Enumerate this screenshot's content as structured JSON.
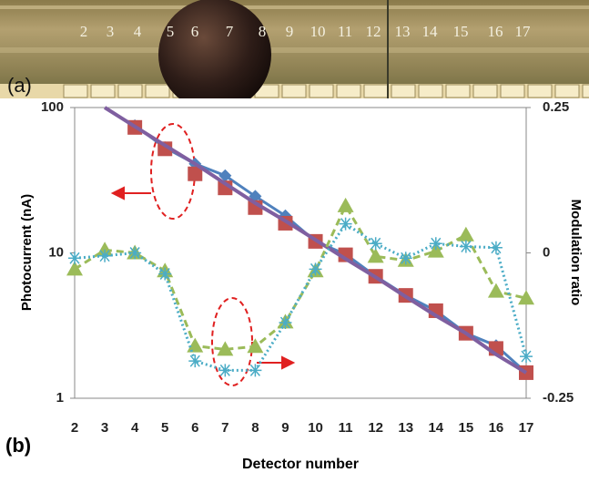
{
  "photo": {
    "panel_label": "(a)",
    "labels": [
      "2",
      "3",
      "4",
      "5",
      "6",
      "7",
      "8",
      "9",
      "10",
      "11",
      "12",
      "13",
      "14",
      "15",
      "16",
      "17"
    ]
  },
  "chart_data": {
    "type": "line",
    "panel_label": "(b)",
    "x_label": "Detector number",
    "y_label": "Photocurrent (nA)",
    "y2_label": "Modulation ratio",
    "categories": [
      2,
      3,
      4,
      5,
      6,
      7,
      8,
      9,
      10,
      11,
      12,
      13,
      14,
      15,
      16,
      17
    ],
    "ylim": [
      1,
      100
    ],
    "yticks": [
      1,
      10,
      100
    ],
    "ylog": true,
    "y2lim": [
      -0.25,
      0.25
    ],
    "y2ticks": [
      -0.25,
      0,
      0.25
    ],
    "series": [
      {
        "color": "#4f81bd",
        "style": "solid",
        "marker": "diamond",
        "axis": "y",
        "values": [
          null,
          null,
          75,
          53,
          41,
          34,
          24.5,
          18,
          12,
          9.8,
          6.9,
          5.1,
          4,
          2.8,
          2.3,
          1.5
        ]
      },
      {
        "color": "#c0504d",
        "style": "none",
        "marker": "square",
        "axis": "y",
        "values": [
          null,
          null,
          73,
          52,
          35,
          28,
          20.5,
          16,
          12,
          9.7,
          6.9,
          5.1,
          4,
          2.8,
          2.2,
          1.5
        ]
      },
      {
        "color": "#7f5fa0",
        "style": "solid",
        "marker": "none",
        "axis": "y",
        "values": [
          null,
          100,
          74,
          55,
          41,
          30,
          22,
          16.6,
          12.3,
          9.1,
          6.8,
          5,
          3.7,
          2.8,
          2,
          1.5
        ]
      },
      {
        "color": "#9bbb59",
        "style": "dashed",
        "marker": "triangle",
        "axis": "y2",
        "values": [
          -0.028,
          0.005,
          0,
          -0.031,
          -0.16,
          -0.166,
          -0.161,
          -0.119,
          -0.031,
          0.081,
          -0.006,
          -0.013,
          0.003,
          0.031,
          -0.066,
          -0.078
        ]
      },
      {
        "color": "#4bacc6",
        "style": "dotted",
        "marker": "asterisk",
        "axis": "y2",
        "values": [
          -0.009,
          -0.005,
          0,
          -0.036,
          -0.186,
          -0.202,
          -0.202,
          -0.12,
          -0.028,
          0.05,
          0.016,
          -0.009,
          0.016,
          0.011,
          0.009,
          -0.178
        ]
      }
    ]
  }
}
